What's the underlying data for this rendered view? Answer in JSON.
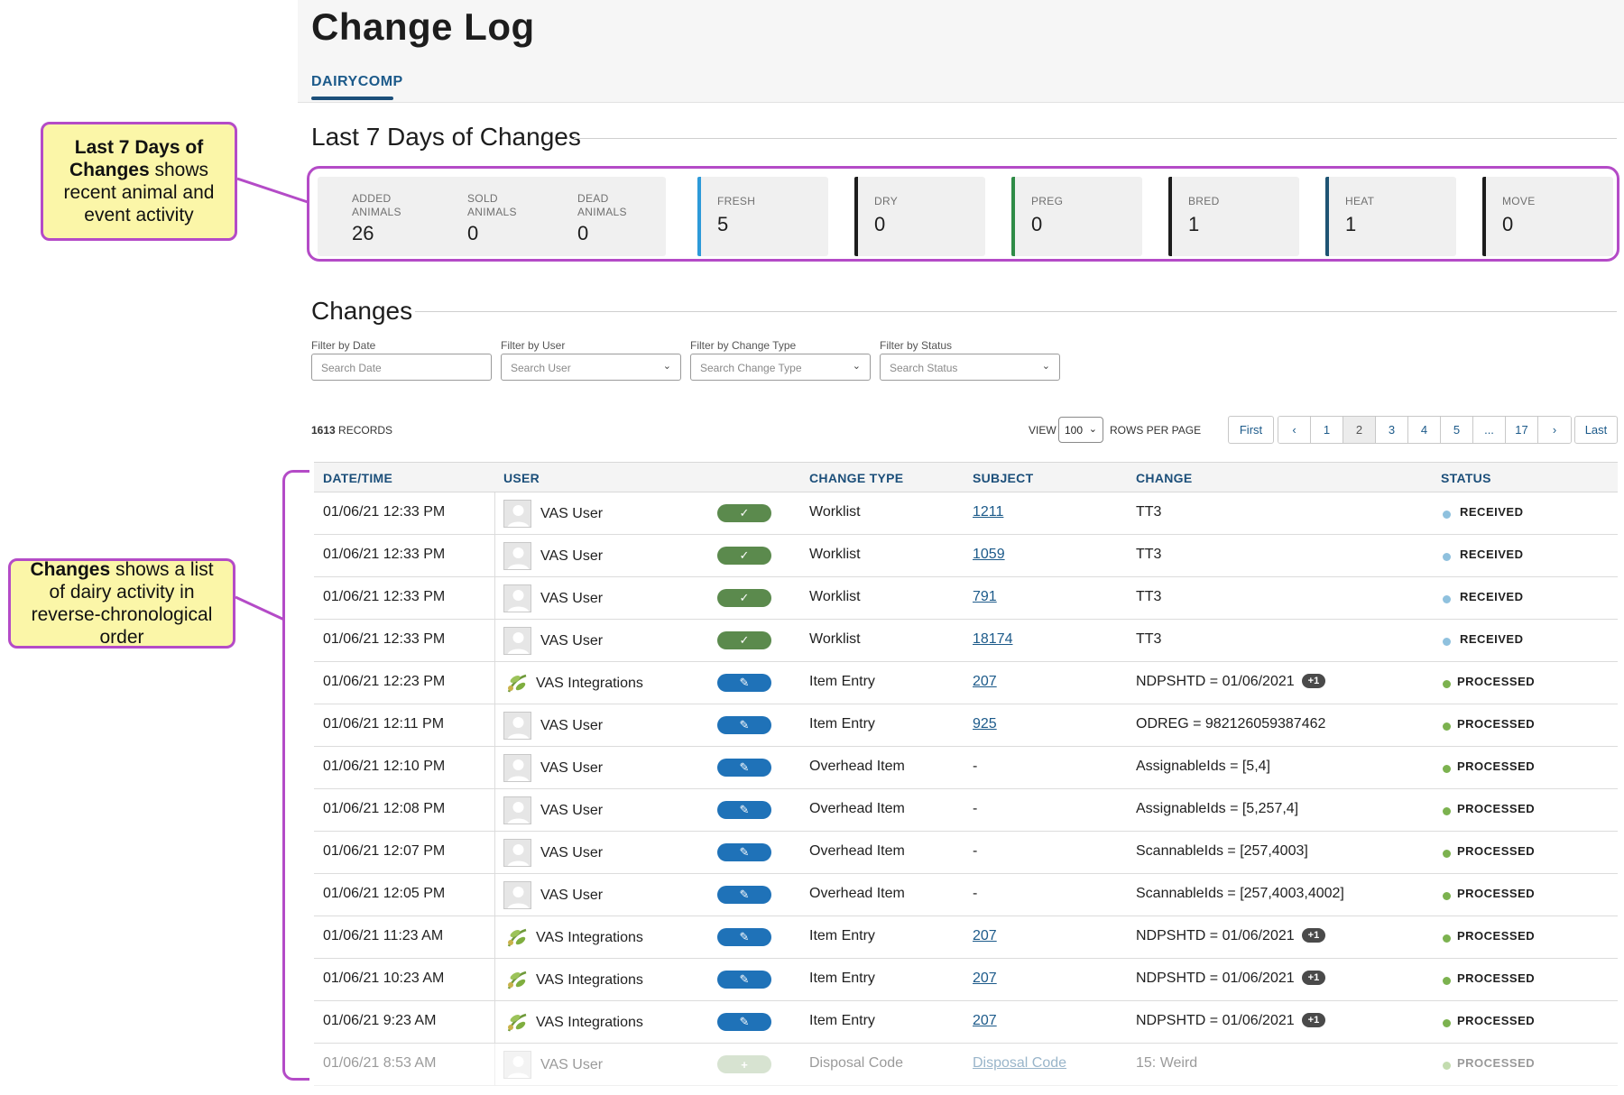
{
  "header": {
    "title": "Change Log",
    "tab": "DAIRYCOMP"
  },
  "summary": {
    "title": "Last 7 Days of Changes",
    "groups": [
      {
        "label_line1": "ADDED",
        "label_line2": "ANIMALS",
        "value": "26"
      },
      {
        "label_line1": "SOLD",
        "label_line2": "ANIMALS",
        "value": "0"
      },
      {
        "label_line1": "DEAD",
        "label_line2": "ANIMALS",
        "value": "0"
      }
    ],
    "cards": [
      {
        "label": "FRESH",
        "value": "5",
        "accent": "#2d9ad9"
      },
      {
        "label": "DRY",
        "value": "0",
        "accent": "#1d1d1d"
      },
      {
        "label": "PREG",
        "value": "0",
        "accent": "#2e8b46"
      },
      {
        "label": "BRED",
        "value": "1",
        "accent": "#1d1d1d"
      },
      {
        "label": "HEAT",
        "value": "1",
        "accent": "#1e5473"
      },
      {
        "label": "MOVE",
        "value": "0",
        "accent": "#1d1d1d"
      }
    ]
  },
  "callouts": {
    "top": {
      "bold": "Last 7 Days of Changes",
      "text": " shows recent animal and event activity"
    },
    "bottom": {
      "bold": "Changes",
      "text": " shows a list of dairy activity in reverse-chronological order"
    }
  },
  "changes": {
    "title": "Changes",
    "filters": [
      {
        "label": "Filter by Date",
        "placeholder": "Search Date"
      },
      {
        "label": "Filter by User",
        "placeholder": "Search User"
      },
      {
        "label": "Filter by Change Type",
        "placeholder": "Search Change Type"
      },
      {
        "label": "Filter by Status",
        "placeholder": "Search Status"
      }
    ],
    "records_count": "1613",
    "records_label": "RECORDS",
    "view_label": "VIEW",
    "rows_per_page": "100",
    "rows_per_page_label": "ROWS PER PAGE",
    "pagination": {
      "first": "First",
      "prev": "‹",
      "pages": [
        "1",
        "2",
        "3",
        "4",
        "5",
        "...",
        "17"
      ],
      "next": "›",
      "last": "Last",
      "active": "2"
    }
  },
  "table": {
    "columns": {
      "datetime": "DATE/TIME",
      "user": "USER",
      "change_type": "CHANGE TYPE",
      "subject": "SUBJECT",
      "change": "CHANGE",
      "status": "STATUS"
    },
    "rows": [
      {
        "datetime": "01/06/21 12:33 PM",
        "user": "VAS User",
        "user_kind": "person",
        "pill": "check",
        "change_type": "Worklist",
        "subject": "1211",
        "subject_link": true,
        "change": "TT3",
        "badge": "",
        "status": "RECEIVED"
      },
      {
        "datetime": "01/06/21 12:33 PM",
        "user": "VAS User",
        "user_kind": "person",
        "pill": "check",
        "change_type": "Worklist",
        "subject": "1059",
        "subject_link": true,
        "change": "TT3",
        "badge": "",
        "status": "RECEIVED"
      },
      {
        "datetime": "01/06/21 12:33 PM",
        "user": "VAS User",
        "user_kind": "person",
        "pill": "check",
        "change_type": "Worklist",
        "subject": "791",
        "subject_link": true,
        "change": "TT3",
        "badge": "",
        "status": "RECEIVED"
      },
      {
        "datetime": "01/06/21 12:33 PM",
        "user": "VAS User",
        "user_kind": "person",
        "pill": "check",
        "change_type": "Worklist",
        "subject": "18174",
        "subject_link": true,
        "change": "TT3",
        "badge": "",
        "status": "RECEIVED"
      },
      {
        "datetime": "01/06/21 12:23 PM",
        "user": "VAS Integrations",
        "user_kind": "integration",
        "pill": "edit",
        "change_type": "Item Entry",
        "subject": "207",
        "subject_link": true,
        "change": "NDPSHTD = 01/06/2021",
        "badge": "+1",
        "status": "PROCESSED"
      },
      {
        "datetime": "01/06/21 12:11 PM",
        "user": "VAS User",
        "user_kind": "person",
        "pill": "edit",
        "change_type": "Item Entry",
        "subject": "925",
        "subject_link": true,
        "change": "ODREG = 982126059387462",
        "badge": "",
        "status": "PROCESSED"
      },
      {
        "datetime": "01/06/21 12:10 PM",
        "user": "VAS User",
        "user_kind": "person",
        "pill": "edit",
        "change_type": "Overhead Item",
        "subject": "-",
        "subject_link": false,
        "change": "AssignableIds = [5,4]",
        "badge": "",
        "status": "PROCESSED"
      },
      {
        "datetime": "01/06/21 12:08 PM",
        "user": "VAS User",
        "user_kind": "person",
        "pill": "edit",
        "change_type": "Overhead Item",
        "subject": "-",
        "subject_link": false,
        "change": "AssignableIds = [5,257,4]",
        "badge": "",
        "status": "PROCESSED"
      },
      {
        "datetime": "01/06/21 12:07 PM",
        "user": "VAS User",
        "user_kind": "person",
        "pill": "edit",
        "change_type": "Overhead Item",
        "subject": "-",
        "subject_link": false,
        "change": "ScannableIds = [257,4003]",
        "badge": "",
        "status": "PROCESSED"
      },
      {
        "datetime": "01/06/21 12:05 PM",
        "user": "VAS User",
        "user_kind": "person",
        "pill": "edit",
        "change_type": "Overhead Item",
        "subject": "-",
        "subject_link": false,
        "change": "ScannableIds = [257,4003,4002]",
        "badge": "",
        "status": "PROCESSED"
      },
      {
        "datetime": "01/06/21 11:23 AM",
        "user": "VAS Integrations",
        "user_kind": "integration",
        "pill": "edit",
        "change_type": "Item Entry",
        "subject": "207",
        "subject_link": true,
        "change": "NDPSHTD = 01/06/2021",
        "badge": "+1",
        "status": "PROCESSED"
      },
      {
        "datetime": "01/06/21 10:23 AM",
        "user": "VAS Integrations",
        "user_kind": "integration",
        "pill": "edit",
        "change_type": "Item Entry",
        "subject": "207",
        "subject_link": true,
        "change": "NDPSHTD = 01/06/2021",
        "badge": "+1",
        "status": "PROCESSED"
      },
      {
        "datetime": "01/06/21 9:23 AM",
        "user": "VAS Integrations",
        "user_kind": "integration",
        "pill": "edit",
        "change_type": "Item Entry",
        "subject": "207",
        "subject_link": true,
        "change": "NDPSHTD = 01/06/2021",
        "badge": "+1",
        "status": "PROCESSED"
      },
      {
        "datetime": "01/06/21 8:53 AM",
        "user": "VAS User",
        "user_kind": "person",
        "pill": "add",
        "change_type": "Disposal Code",
        "subject": "Disposal Code",
        "subject_link": true,
        "change": "15: Weird",
        "badge": "",
        "status": "PROCESSED"
      }
    ]
  },
  "colors": {
    "received": "#8fc1de",
    "processed": "#7cb24f",
    "callout_border": "#b44bc7",
    "callout_fill": "#fbf6a8"
  },
  "icons": {
    "check": "check-icon",
    "edit": "pencil-icon",
    "add": "plus-icon",
    "person": "user-avatar-icon",
    "integration": "integration-leaf-icon",
    "chevron": "chevron-down-icon"
  }
}
